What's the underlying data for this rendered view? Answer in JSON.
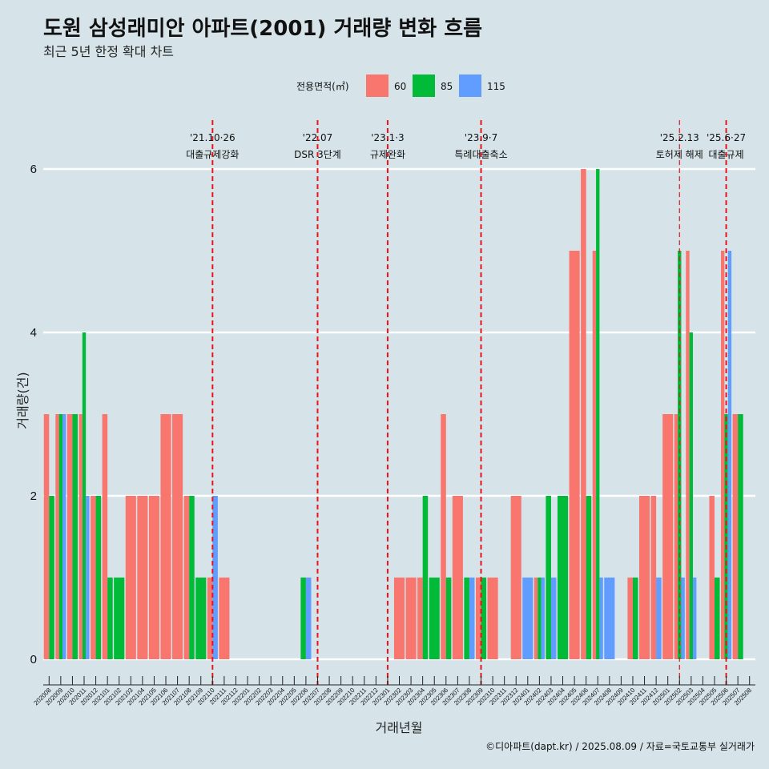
{
  "title": "도원 삼성래미안 아파트(2001) 거래량 변화 흐름",
  "subtitle": "최근 5년 한정 확대 차트",
  "caption": "©디아파트(dapt.kr) / 2025.08.09 / 자료=국토교통부 실거래가",
  "legend": {
    "title": "전용면적(㎡)",
    "items": [
      {
        "label": "60",
        "color": "#f8766d"
      },
      {
        "label": "85",
        "color": "#00ba38"
      },
      {
        "label": "115",
        "color": "#619cff"
      }
    ]
  },
  "chart_data": {
    "type": "bar",
    "xlabel": "거래년월",
    "ylabel": "거래량(건)",
    "ylim": [
      0,
      6.5
    ],
    "yticks": [
      0,
      2,
      4,
      6
    ],
    "grid": true,
    "legend_position": "top",
    "categories": [
      "202008",
      "202009",
      "202010",
      "202011",
      "202012",
      "202101",
      "202102",
      "202103",
      "202104",
      "202105",
      "202106",
      "202107",
      "202108",
      "202109",
      "202110",
      "202111",
      "202112",
      "202201",
      "202202",
      "202203",
      "202204",
      "202205",
      "202206",
      "202207",
      "202208",
      "202209",
      "202210",
      "202211",
      "202212",
      "202301",
      "202302",
      "202303",
      "202304",
      "202305",
      "202306",
      "202307",
      "202308",
      "202309",
      "202310",
      "202311",
      "202312",
      "202401",
      "202402",
      "202403",
      "202404",
      "202405",
      "202406",
      "202407",
      "202408",
      "202409",
      "202410",
      "202411",
      "202412",
      "202501",
      "202502",
      "202503",
      "202504",
      "202505",
      "202506",
      "202507",
      "202508"
    ],
    "series": [
      {
        "name": "60",
        "color": "#f8766d",
        "values": [
          3,
          3,
          3,
          3,
          2,
          3,
          0,
          2,
          2,
          2,
          3,
          3,
          2,
          0,
          1,
          1,
          0,
          0,
          0,
          0,
          0,
          0,
          0,
          0,
          0,
          0,
          0,
          0,
          0,
          0,
          1,
          1,
          1,
          0,
          3,
          2,
          0,
          1,
          1,
          0,
          2,
          0,
          1,
          0,
          0,
          5,
          6,
          5,
          0,
          0,
          1,
          2,
          2,
          3,
          3,
          5,
          0,
          2,
          5,
          3,
          0
        ]
      },
      {
        "name": "85",
        "color": "#00ba38",
        "values": [
          2,
          3,
          3,
          4,
          2,
          1,
          1,
          0,
          0,
          0,
          0,
          0,
          2,
          1,
          0,
          0,
          0,
          0,
          0,
          0,
          0,
          0,
          1,
          0,
          0,
          0,
          0,
          0,
          0,
          0,
          0,
          0,
          2,
          1,
          1,
          0,
          1,
          1,
          0,
          0,
          0,
          0,
          1,
          2,
          2,
          0,
          2,
          6,
          0,
          0,
          1,
          0,
          0,
          0,
          5,
          4,
          0,
          1,
          3,
          3,
          0
        ]
      },
      {
        "name": "115",
        "color": "#619cff",
        "values": [
          0,
          3,
          0,
          2,
          0,
          0,
          0,
          0,
          0,
          0,
          0,
          0,
          0,
          0,
          2,
          0,
          0,
          0,
          0,
          0,
          0,
          0,
          1,
          0,
          0,
          0,
          0,
          0,
          0,
          0,
          0,
          0,
          0,
          0,
          0,
          0,
          1,
          0,
          0,
          0,
          0,
          1,
          1,
          1,
          0,
          0,
          0,
          1,
          1,
          0,
          0,
          0,
          1,
          0,
          1,
          1,
          0,
          0,
          5,
          0,
          0
        ]
      }
    ],
    "annotations": [
      {
        "at": "202110",
        "date": "'21.10·26",
        "label": "대출규제강화"
      },
      {
        "at": "202207",
        "date": "'22.07",
        "label": "DSR 3단계"
      },
      {
        "at": "202301",
        "date": "'23.1·3",
        "label": "규제완화"
      },
      {
        "at": "202309",
        "date": "'23.9·7",
        "label": "특례대출축소"
      },
      {
        "at": "202502",
        "date": "'25.2.13",
        "label": "토허제 해제"
      },
      {
        "at": "202506",
        "date": "'25.6·27",
        "label": "대출규제"
      }
    ]
  }
}
